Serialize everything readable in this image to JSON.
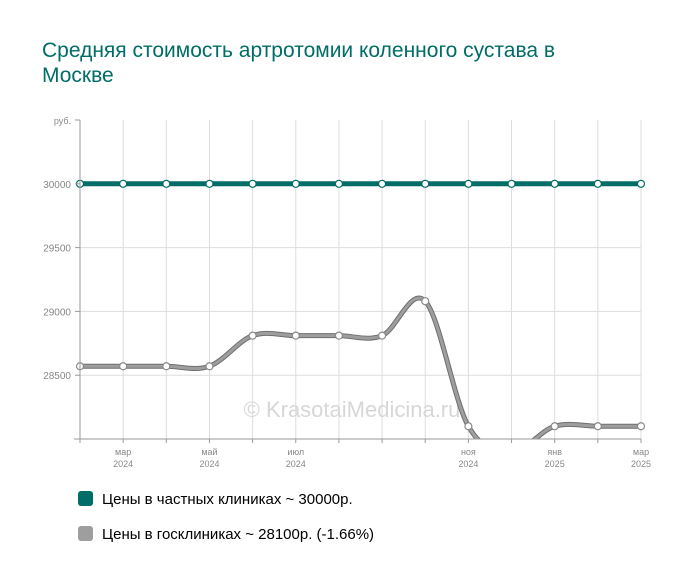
{
  "title": "Средняя стоимость артротомии коленного сустава в Москве",
  "watermark": "© KrasotaiMedicina.ru",
  "colors": {
    "private": "#006d66",
    "public": "#9e9e9e",
    "title": "#006d66",
    "grid": "#dddddd",
    "axis": "#999999",
    "tick_text": "#888888"
  },
  "chart_data": {
    "type": "line",
    "y_unit": "руб.",
    "ylim": [
      28000,
      30500
    ],
    "y_ticks": [
      28500,
      29000,
      29500,
      30000
    ],
    "x": [
      "2024-02",
      "2024-03",
      "2024-04",
      "2024-05",
      "2024-06",
      "2024-07",
      "2024-08",
      "2024-09",
      "2024-10",
      "2024-11",
      "2024-12",
      "2025-01",
      "2025-02",
      "2025-03"
    ],
    "x_tick_labels": [
      {
        "month": "мар",
        "year": "2024",
        "index": 1
      },
      {
        "month": "май",
        "year": "2024",
        "index": 3
      },
      {
        "month": "июл",
        "year": "2024",
        "index": 5
      },
      {
        "month": "ноя",
        "year": "2024",
        "index": 9
      },
      {
        "month": "янв",
        "year": "2025",
        "index": 11
      },
      {
        "month": "мар",
        "year": "2025",
        "index": 13
      }
    ],
    "grid": true,
    "series": [
      {
        "key": "private",
        "values": [
          30000,
          30000,
          30000,
          30000,
          30000,
          30000,
          30000,
          30000,
          30000,
          30000,
          30000,
          30000,
          30000,
          30000
        ]
      },
      {
        "key": "public",
        "values": [
          28570,
          28570,
          28570,
          28570,
          28810,
          28810,
          28810,
          28810,
          29080,
          28100,
          27900,
          28100,
          28100,
          28100
        ]
      }
    ]
  },
  "legend": {
    "private": "Цены в частных клиниках ~ 30000р.",
    "public": "Цены в госклиниках ~ 28100р. (-1.66%)"
  }
}
